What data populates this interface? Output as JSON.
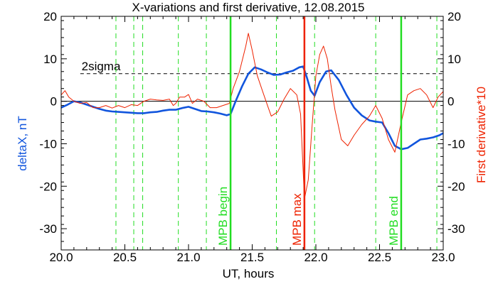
{
  "chart_data": {
    "type": "line",
    "title": "X-variations and first derivative, 12.08.2015",
    "xlabel": "UT, hours",
    "ylabel_left": "deltaX, nT",
    "ylabel_right": "First derivative*10",
    "xlim": [
      20.0,
      23.0
    ],
    "ylim": [
      -35,
      20
    ],
    "x_ticks": [
      20.0,
      20.5,
      21.0,
      21.5,
      22.0,
      22.5,
      23.0
    ],
    "x_tick_labels": [
      "20.0",
      "20.5",
      "21.0",
      "21.5",
      "22.0",
      "22.5",
      "23.0"
    ],
    "y_ticks": [
      -30,
      -20,
      -10,
      0,
      10,
      20
    ],
    "y_tick_labels": [
      "-30",
      "-20",
      "-10",
      "0",
      "10",
      "20"
    ],
    "sigma_level": 6.5,
    "sigma_label": "2sigma",
    "zero_line": 0,
    "dashed_green_lines_x": [
      20.43,
      20.57,
      20.64,
      20.92,
      21.14,
      21.69,
      21.99,
      22.47,
      22.95
    ],
    "markers": [
      {
        "x": 21.33,
        "label": "MPB begin",
        "color": "#22dd22"
      },
      {
        "x": 21.91,
        "label": "MPB max",
        "color": "#ee2200"
      },
      {
        "x": 22.67,
        "label": "MPB end",
        "color": "#22dd22"
      }
    ],
    "series": [
      {
        "name": "deltaX, nT",
        "color": "#1155dd",
        "points": [
          [
            20.0,
            -1.5
          ],
          [
            20.05,
            -0.8
          ],
          [
            20.1,
            0.0
          ],
          [
            20.15,
            -0.3
          ],
          [
            20.2,
            -0.8
          ],
          [
            20.25,
            -1.3
          ],
          [
            20.3,
            -1.8
          ],
          [
            20.35,
            -2.2
          ],
          [
            20.4,
            -2.4
          ],
          [
            20.45,
            -2.5
          ],
          [
            20.5,
            -2.6
          ],
          [
            20.55,
            -2.7
          ],
          [
            20.6,
            -2.8
          ],
          [
            20.65,
            -2.8
          ],
          [
            20.7,
            -2.6
          ],
          [
            20.75,
            -2.5
          ],
          [
            20.8,
            -2.2
          ],
          [
            20.85,
            -2.0
          ],
          [
            20.9,
            -2.0
          ],
          [
            20.95,
            -1.6
          ],
          [
            21.0,
            -1.3
          ],
          [
            21.05,
            -1.8
          ],
          [
            21.1,
            -2.3
          ],
          [
            21.15,
            -2.4
          ],
          [
            21.2,
            -2.6
          ],
          [
            21.25,
            -2.9
          ],
          [
            21.3,
            -3.3
          ],
          [
            21.33,
            -3.0
          ],
          [
            21.37,
            0.0
          ],
          [
            21.42,
            3.5
          ],
          [
            21.47,
            6.5
          ],
          [
            21.52,
            8.0
          ],
          [
            21.57,
            7.5
          ],
          [
            21.62,
            6.8
          ],
          [
            21.67,
            6.2
          ],
          [
            21.72,
            6.3
          ],
          [
            21.77,
            6.8
          ],
          [
            21.82,
            7.2
          ],
          [
            21.87,
            8.0
          ],
          [
            21.9,
            8.2
          ],
          [
            21.93,
            5.5
          ],
          [
            21.96,
            2.5
          ],
          [
            21.99,
            1.3
          ],
          [
            22.03,
            4.5
          ],
          [
            22.08,
            7.0
          ],
          [
            22.12,
            7.3
          ],
          [
            22.18,
            5.0
          ],
          [
            22.24,
            1.5
          ],
          [
            22.3,
            -1.5
          ],
          [
            22.36,
            -3.3
          ],
          [
            22.42,
            -4.5
          ],
          [
            22.47,
            -4.8
          ],
          [
            22.52,
            -5.0
          ],
          [
            22.57,
            -7.5
          ],
          [
            22.62,
            -10.5
          ],
          [
            22.67,
            -11.3
          ],
          [
            22.72,
            -11.0
          ],
          [
            22.77,
            -10.0
          ],
          [
            22.82,
            -9.0
          ],
          [
            22.87,
            -8.8
          ],
          [
            22.92,
            -8.5
          ],
          [
            22.97,
            -8.0
          ],
          [
            23.0,
            -7.5
          ]
        ]
      },
      {
        "name": "First derivative*10",
        "color": "#ee2200",
        "points": [
          [
            20.0,
            1.5
          ],
          [
            20.03,
            2.5
          ],
          [
            20.06,
            1.0
          ],
          [
            20.1,
            0.0
          ],
          [
            20.15,
            -0.5
          ],
          [
            20.2,
            -0.3
          ],
          [
            20.25,
            -1.5
          ],
          [
            20.3,
            -1.5
          ],
          [
            20.35,
            -1.0
          ],
          [
            20.4,
            -1.6
          ],
          [
            20.45,
            -1.0
          ],
          [
            20.5,
            -1.5
          ],
          [
            20.55,
            -0.8
          ],
          [
            20.6,
            -1.0
          ],
          [
            20.65,
            0.0
          ],
          [
            20.7,
            0.5
          ],
          [
            20.75,
            0.3
          ],
          [
            20.8,
            0.2
          ],
          [
            20.85,
            0.5
          ],
          [
            20.88,
            -1.0
          ],
          [
            20.9,
            -0.5
          ],
          [
            20.93,
            1.0
          ],
          [
            20.97,
            1.0
          ],
          [
            21.0,
            1.6
          ],
          [
            21.03,
            -0.5
          ],
          [
            21.07,
            0.5
          ],
          [
            21.12,
            0.0
          ],
          [
            21.17,
            -1.5
          ],
          [
            21.22,
            -1.5
          ],
          [
            21.27,
            -1.0
          ],
          [
            21.32,
            -0.5
          ],
          [
            21.35,
            3.0
          ],
          [
            21.4,
            7.0
          ],
          [
            21.45,
            13.0
          ],
          [
            21.47,
            16.0
          ],
          [
            21.5,
            12.0
          ],
          [
            21.54,
            6.0
          ],
          [
            21.58,
            2.5
          ],
          [
            21.62,
            -1.0
          ],
          [
            21.65,
            -3.5
          ],
          [
            21.7,
            -2.5
          ],
          [
            21.75,
            0.5
          ],
          [
            21.8,
            3.0
          ],
          [
            21.85,
            1.5
          ],
          [
            21.88,
            -3.0
          ],
          [
            21.91,
            -23.0
          ],
          [
            21.94,
            -18.5
          ],
          [
            21.97,
            -6.0
          ],
          [
            22.0,
            6.0
          ],
          [
            22.03,
            11.0
          ],
          [
            22.06,
            13.0
          ],
          [
            22.09,
            10.0
          ],
          [
            22.12,
            3.5
          ],
          [
            22.15,
            -2.0
          ],
          [
            22.2,
            -9.0
          ],
          [
            22.25,
            -10.5
          ],
          [
            22.3,
            -8.0
          ],
          [
            22.36,
            -5.5
          ],
          [
            22.42,
            -3.5
          ],
          [
            22.47,
            -1.0
          ],
          [
            22.52,
            -4.0
          ],
          [
            22.57,
            -9.0
          ],
          [
            22.62,
            -12.0
          ],
          [
            22.67,
            -5.0
          ],
          [
            22.72,
            1.5
          ],
          [
            22.77,
            2.5
          ],
          [
            22.82,
            3.0
          ],
          [
            22.87,
            1.5
          ],
          [
            22.92,
            -1.5
          ],
          [
            22.96,
            1.0
          ],
          [
            23.0,
            2.3
          ]
        ]
      }
    ]
  }
}
